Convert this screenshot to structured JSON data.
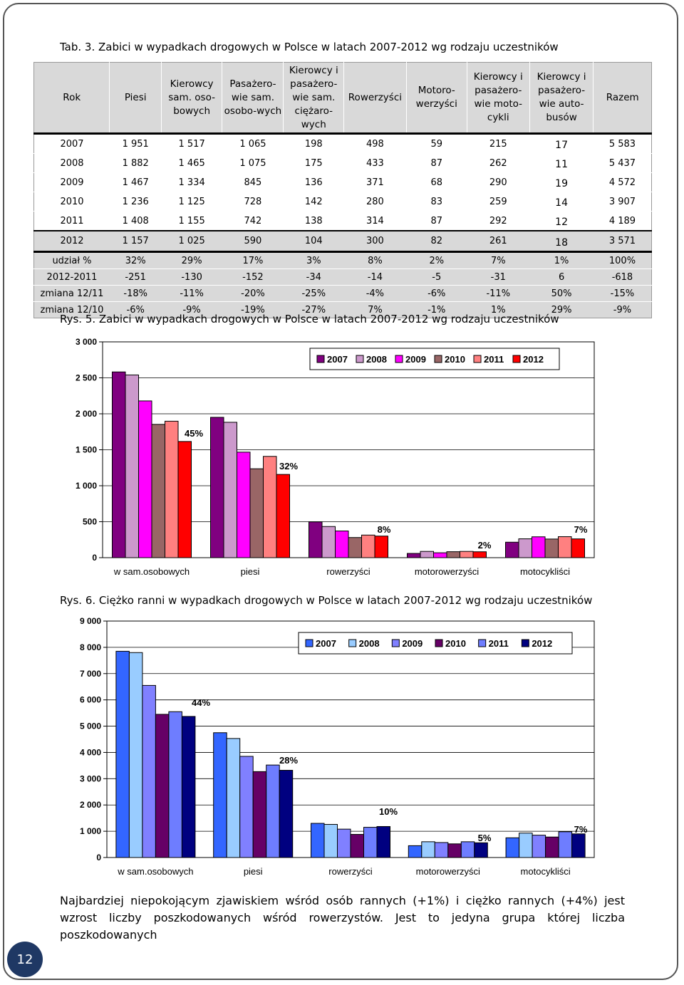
{
  "table": {
    "caption": "Tab. 3. Zabici w wypadkach drogowych w Polsce w latach 2007-2012 wg rodzaju uczestników",
    "headers": [
      "Rok",
      "Piesi",
      "Kierowcy sam. oso-bowych",
      "Pasażero-wie sam. osobo-wych",
      "Kierowcy i pasażero-wie sam. ciężaro-wych",
      "Rowerzyści",
      "Motoro-werzyści",
      "Kierowcy i pasażero-wie moto-cykli",
      "Kierowcy i pasażero-wie auto-busów",
      "Razem"
    ],
    "rows": [
      [
        "2007",
        "1 951",
        "1 517",
        "1 065",
        "198",
        "498",
        "59",
        "215",
        "17",
        "5 583"
      ],
      [
        "2008",
        "1 882",
        "1 465",
        "1 075",
        "175",
        "433",
        "87",
        "262",
        "11",
        "5 437"
      ],
      [
        "2009",
        "1 467",
        "1 334",
        "845",
        "136",
        "371",
        "68",
        "290",
        "19",
        "4 572"
      ],
      [
        "2010",
        "1 236",
        "1 125",
        "728",
        "142",
        "280",
        "83",
        "259",
        "14",
        "3 907"
      ],
      [
        "2011",
        "1 408",
        "1 155",
        "742",
        "138",
        "314",
        "87",
        "292",
        "12",
        "4 189"
      ],
      [
        "2012",
        "1 157",
        "1 025",
        "590",
        "104",
        "300",
        "82",
        "261",
        "18",
        "3 571"
      ],
      [
        "udział %",
        "32%",
        "29%",
        "17%",
        "3%",
        "8%",
        "2%",
        "7%",
        "1%",
        "100%"
      ],
      [
        "2012-2011",
        "-251",
        "-130",
        "-152",
        "-34",
        "-14",
        "-5",
        "-31",
        "6",
        "-618"
      ],
      [
        "zmiana 12/11",
        "-18%",
        "-11%",
        "-20%",
        "-25%",
        "-4%",
        "-6%",
        "-11%",
        "50%",
        "-15%"
      ],
      [
        "zmiana 12/10",
        "-6%",
        "-9%",
        "-19%",
        "-27%",
        "7%",
        "-1%",
        "1%",
        "29%",
        "-9%"
      ]
    ]
  },
  "chart1_caption": "Rys. 5. Zabici w wypadkach drogowych w Polsce w latach 2007-2012 wg rodzaju uczestników",
  "chart2_caption": "Rys. 6. Ciężko ranni w wypadkach drogowych w Polsce w latach 2007-2012 wg rodzaju uczestników",
  "chart_data": [
    {
      "type": "bar",
      "categories": [
        "w sam.osobowych",
        "piesi",
        "rowerzyści",
        "motorowerzyści",
        "motocykliści"
      ],
      "ylim": [
        0,
        3000
      ],
      "yticks": [
        0,
        500,
        1000,
        1500,
        2000,
        2500,
        3000
      ],
      "ytick_labels": [
        "0",
        "500",
        "1 000",
        "1 500",
        "2 000",
        "2 500",
        "3 000"
      ],
      "grid": true,
      "legend_position": "top-right",
      "series": [
        {
          "name": "2007",
          "color": "#800080",
          "values": [
            2582,
            1951,
            498,
            59,
            215
          ]
        },
        {
          "name": "2008",
          "color": "#cc99cc",
          "values": [
            2540,
            1882,
            433,
            87,
            262
          ]
        },
        {
          "name": "2009",
          "color": "#ff00ff",
          "values": [
            2179,
            1467,
            371,
            68,
            290
          ]
        },
        {
          "name": "2010",
          "color": "#996666",
          "values": [
            1853,
            1236,
            280,
            83,
            259
          ]
        },
        {
          "name": "2011",
          "color": "#ff8080",
          "values": [
            1897,
            1408,
            314,
            87,
            292
          ]
        },
        {
          "name": "2012",
          "color": "#ff0000",
          "values": [
            1615,
            1157,
            300,
            82,
            261
          ]
        }
      ],
      "annotations": [
        "45%",
        "32%",
        "8%",
        "2%",
        "7%"
      ]
    },
    {
      "type": "bar",
      "categories": [
        "w sam.osobowych",
        "piesi",
        "rowerzyści",
        "motorowerzyści",
        "motocykliści"
      ],
      "ylim": [
        0,
        9000
      ],
      "yticks": [
        0,
        1000,
        2000,
        3000,
        4000,
        5000,
        6000,
        7000,
        8000,
        9000
      ],
      "ytick_labels": [
        "0",
        "1 000",
        "2 000",
        "3 000",
        "4 000",
        "5 000",
        "6 000",
        "7 000",
        "8 000",
        "9 000"
      ],
      "grid": true,
      "legend_position": "top-right",
      "series": [
        {
          "name": "2007",
          "color": "#3366ff",
          "values": [
            7850,
            4750,
            1300,
            450,
            750
          ]
        },
        {
          "name": "2008",
          "color": "#99ccff",
          "values": [
            7800,
            4530,
            1260,
            600,
            930
          ]
        },
        {
          "name": "2009",
          "color": "#8080ff",
          "values": [
            6550,
            3850,
            1080,
            570,
            850
          ]
        },
        {
          "name": "2010",
          "color": "#660066",
          "values": [
            5450,
            3270,
            880,
            520,
            780
          ]
        },
        {
          "name": "2011",
          "color": "#6e7dff",
          "values": [
            5550,
            3520,
            1150,
            600,
            980
          ]
        },
        {
          "name": "2012",
          "color": "#000080",
          "values": [
            5370,
            3320,
            1180,
            560,
            900
          ]
        }
      ],
      "annotations": [
        "44%",
        "28%",
        "10%",
        "5%",
        "7%"
      ]
    }
  ],
  "paragraph": "Najbardziej niepokojącym zjawiskiem wśród osób rannych (+1%) i ciężko rannych (+4%) jest wzrost liczby poszkodowanych wśród rowerzystów. Jest to jedyna grupa której liczba poszkodowanych",
  "page_number": "12"
}
